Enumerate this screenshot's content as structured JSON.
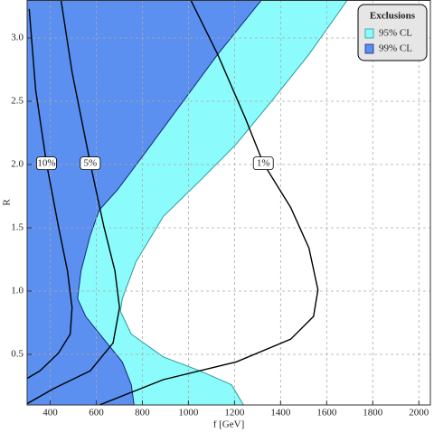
{
  "chart_data": {
    "type": "contour",
    "xlabel": "f [GeV]",
    "ylabel": "R",
    "xlim": [
      300,
      2050
    ],
    "ylim": [
      0.1,
      3.3
    ],
    "xticks": [
      400,
      600,
      800,
      1000,
      1200,
      1400,
      1600,
      1800,
      2000
    ],
    "yticks": [
      0.5,
      {
        "value": 1.0,
        "label": "1.0"
      },
      1.5,
      {
        "value": 2.0,
        "label": "2.0"
      },
      2.5,
      {
        "value": 3.0,
        "label": "3.0"
      }
    ],
    "grid": true,
    "legend_title": "Exclusions",
    "legend": "upper right",
    "series": [
      {
        "name": "95% CL",
        "color": "#8cfbfb",
        "edge": "#2a9a9a",
        "x": [
          1690,
          1523,
          1365,
          1207,
          1049,
          891,
          772,
          713,
          705,
          752,
          891,
          1049,
          1187,
          1239
        ],
        "y": [
          3.3,
          2.87,
          2.51,
          2.16,
          1.87,
          1.59,
          1.23,
          0.94,
          0.84,
          0.66,
          0.48,
          0.37,
          0.26,
          0.1
        ]
      },
      {
        "name": "99% CL",
        "color": "#5b8ff0",
        "edge": "#1a237e",
        "x": [
          1317,
          1127,
          969,
          811,
          692,
          613,
          574,
          534,
          519,
          554,
          633,
          713,
          752,
          764
        ],
        "y": [
          3.3,
          2.87,
          2.48,
          2.09,
          1.8,
          1.64,
          1.44,
          1.16,
          0.94,
          0.8,
          0.62,
          0.44,
          0.26,
          0.1
        ]
      }
    ],
    "contours": [
      {
        "label": "10%",
        "x": [
          309,
          337,
          384,
          436,
          475,
          495,
          487,
          436,
          356,
          300
        ],
        "y": [
          3.23,
          2.59,
          2.01,
          1.51,
          1.16,
          0.87,
          0.66,
          0.51,
          0.37,
          0.31
        ]
      },
      {
        "label": "5%",
        "x": [
          447,
          495,
          574,
          633,
          681,
          701,
          673,
          574,
          416,
          300
        ],
        "y": [
          3.3,
          2.73,
          2.01,
          1.51,
          1.16,
          0.87,
          0.59,
          0.37,
          0.23,
          0.11
        ]
      },
      {
        "label": "1%",
        "x": [
          1010,
          1127,
          1246,
          1325,
          1444,
          1523,
          1562,
          1543,
          1444,
          1207,
          891,
          614
        ],
        "y": [
          3.3,
          2.87,
          2.37,
          2.01,
          1.66,
          1.34,
          1.01,
          0.8,
          0.62,
          0.44,
          0.3,
          0.1
        ]
      }
    ]
  }
}
